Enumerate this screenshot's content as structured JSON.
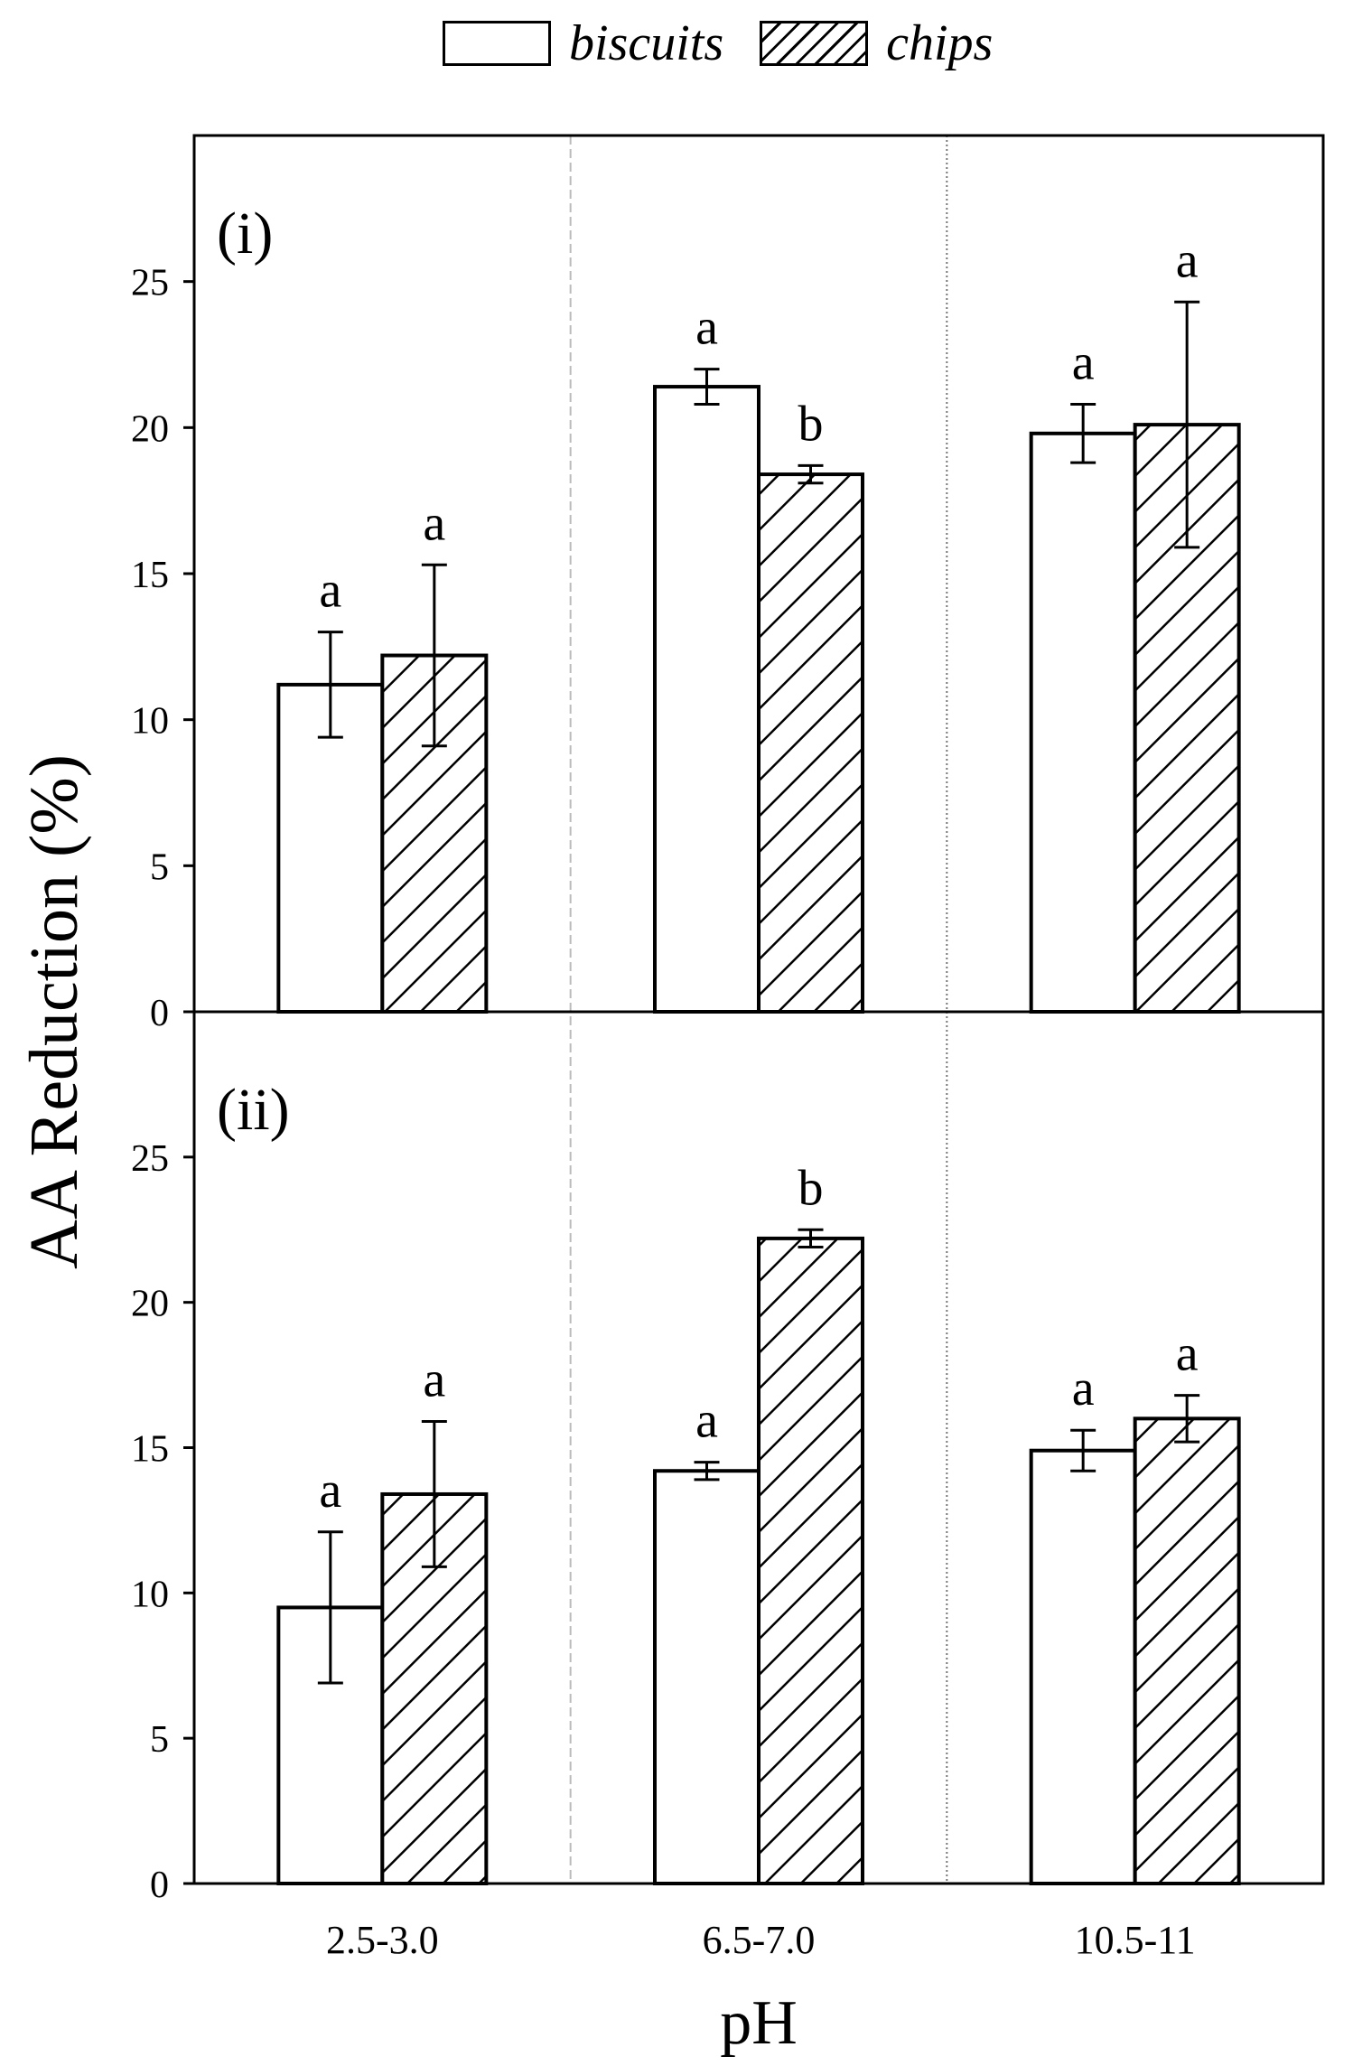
{
  "legend": {
    "items": [
      {
        "label": "biscuits",
        "pattern": "none"
      },
      {
        "label": "chips",
        "pattern": "diagonal-hatch"
      }
    ]
  },
  "chart_data": {
    "type": "bar",
    "xlabel": "pH",
    "ylabel": "AA Reduction (%)",
    "categories": [
      "2.5-3.0",
      "6.5-7.0",
      "10.5-11"
    ],
    "ylim": [
      0,
      30
    ],
    "yticks": [
      0,
      5,
      10,
      15,
      20,
      25
    ],
    "grid": false,
    "legend_position": "top-center",
    "panels": [
      {
        "label": "(i)",
        "series": [
          {
            "name": "biscuits",
            "values": [
              11.2,
              21.4,
              19.8
            ],
            "errors": [
              1.8,
              0.6,
              1.0
            ],
            "letters": [
              "a",
              "a",
              "a"
            ]
          },
          {
            "name": "chips",
            "values": [
              12.2,
              18.4,
              20.1
            ],
            "errors": [
              3.1,
              0.3,
              4.2
            ],
            "letters": [
              "a",
              "b",
              "a"
            ]
          }
        ]
      },
      {
        "label": "(ii)",
        "series": [
          {
            "name": "biscuits",
            "values": [
              9.5,
              14.2,
              14.9
            ],
            "errors": [
              2.6,
              0.3,
              0.7
            ],
            "letters": [
              "a",
              "a",
              "a"
            ]
          },
          {
            "name": "chips",
            "values": [
              13.4,
              22.2,
              16.0
            ],
            "errors": [
              2.5,
              0.3,
              0.8
            ],
            "letters": [
              "a",
              "b",
              "a"
            ]
          }
        ]
      }
    ]
  },
  "colors": {
    "bar_fill": "#ffffff",
    "stroke": "#000000",
    "hatch": "#000000",
    "separator": "#bbbbbb"
  }
}
